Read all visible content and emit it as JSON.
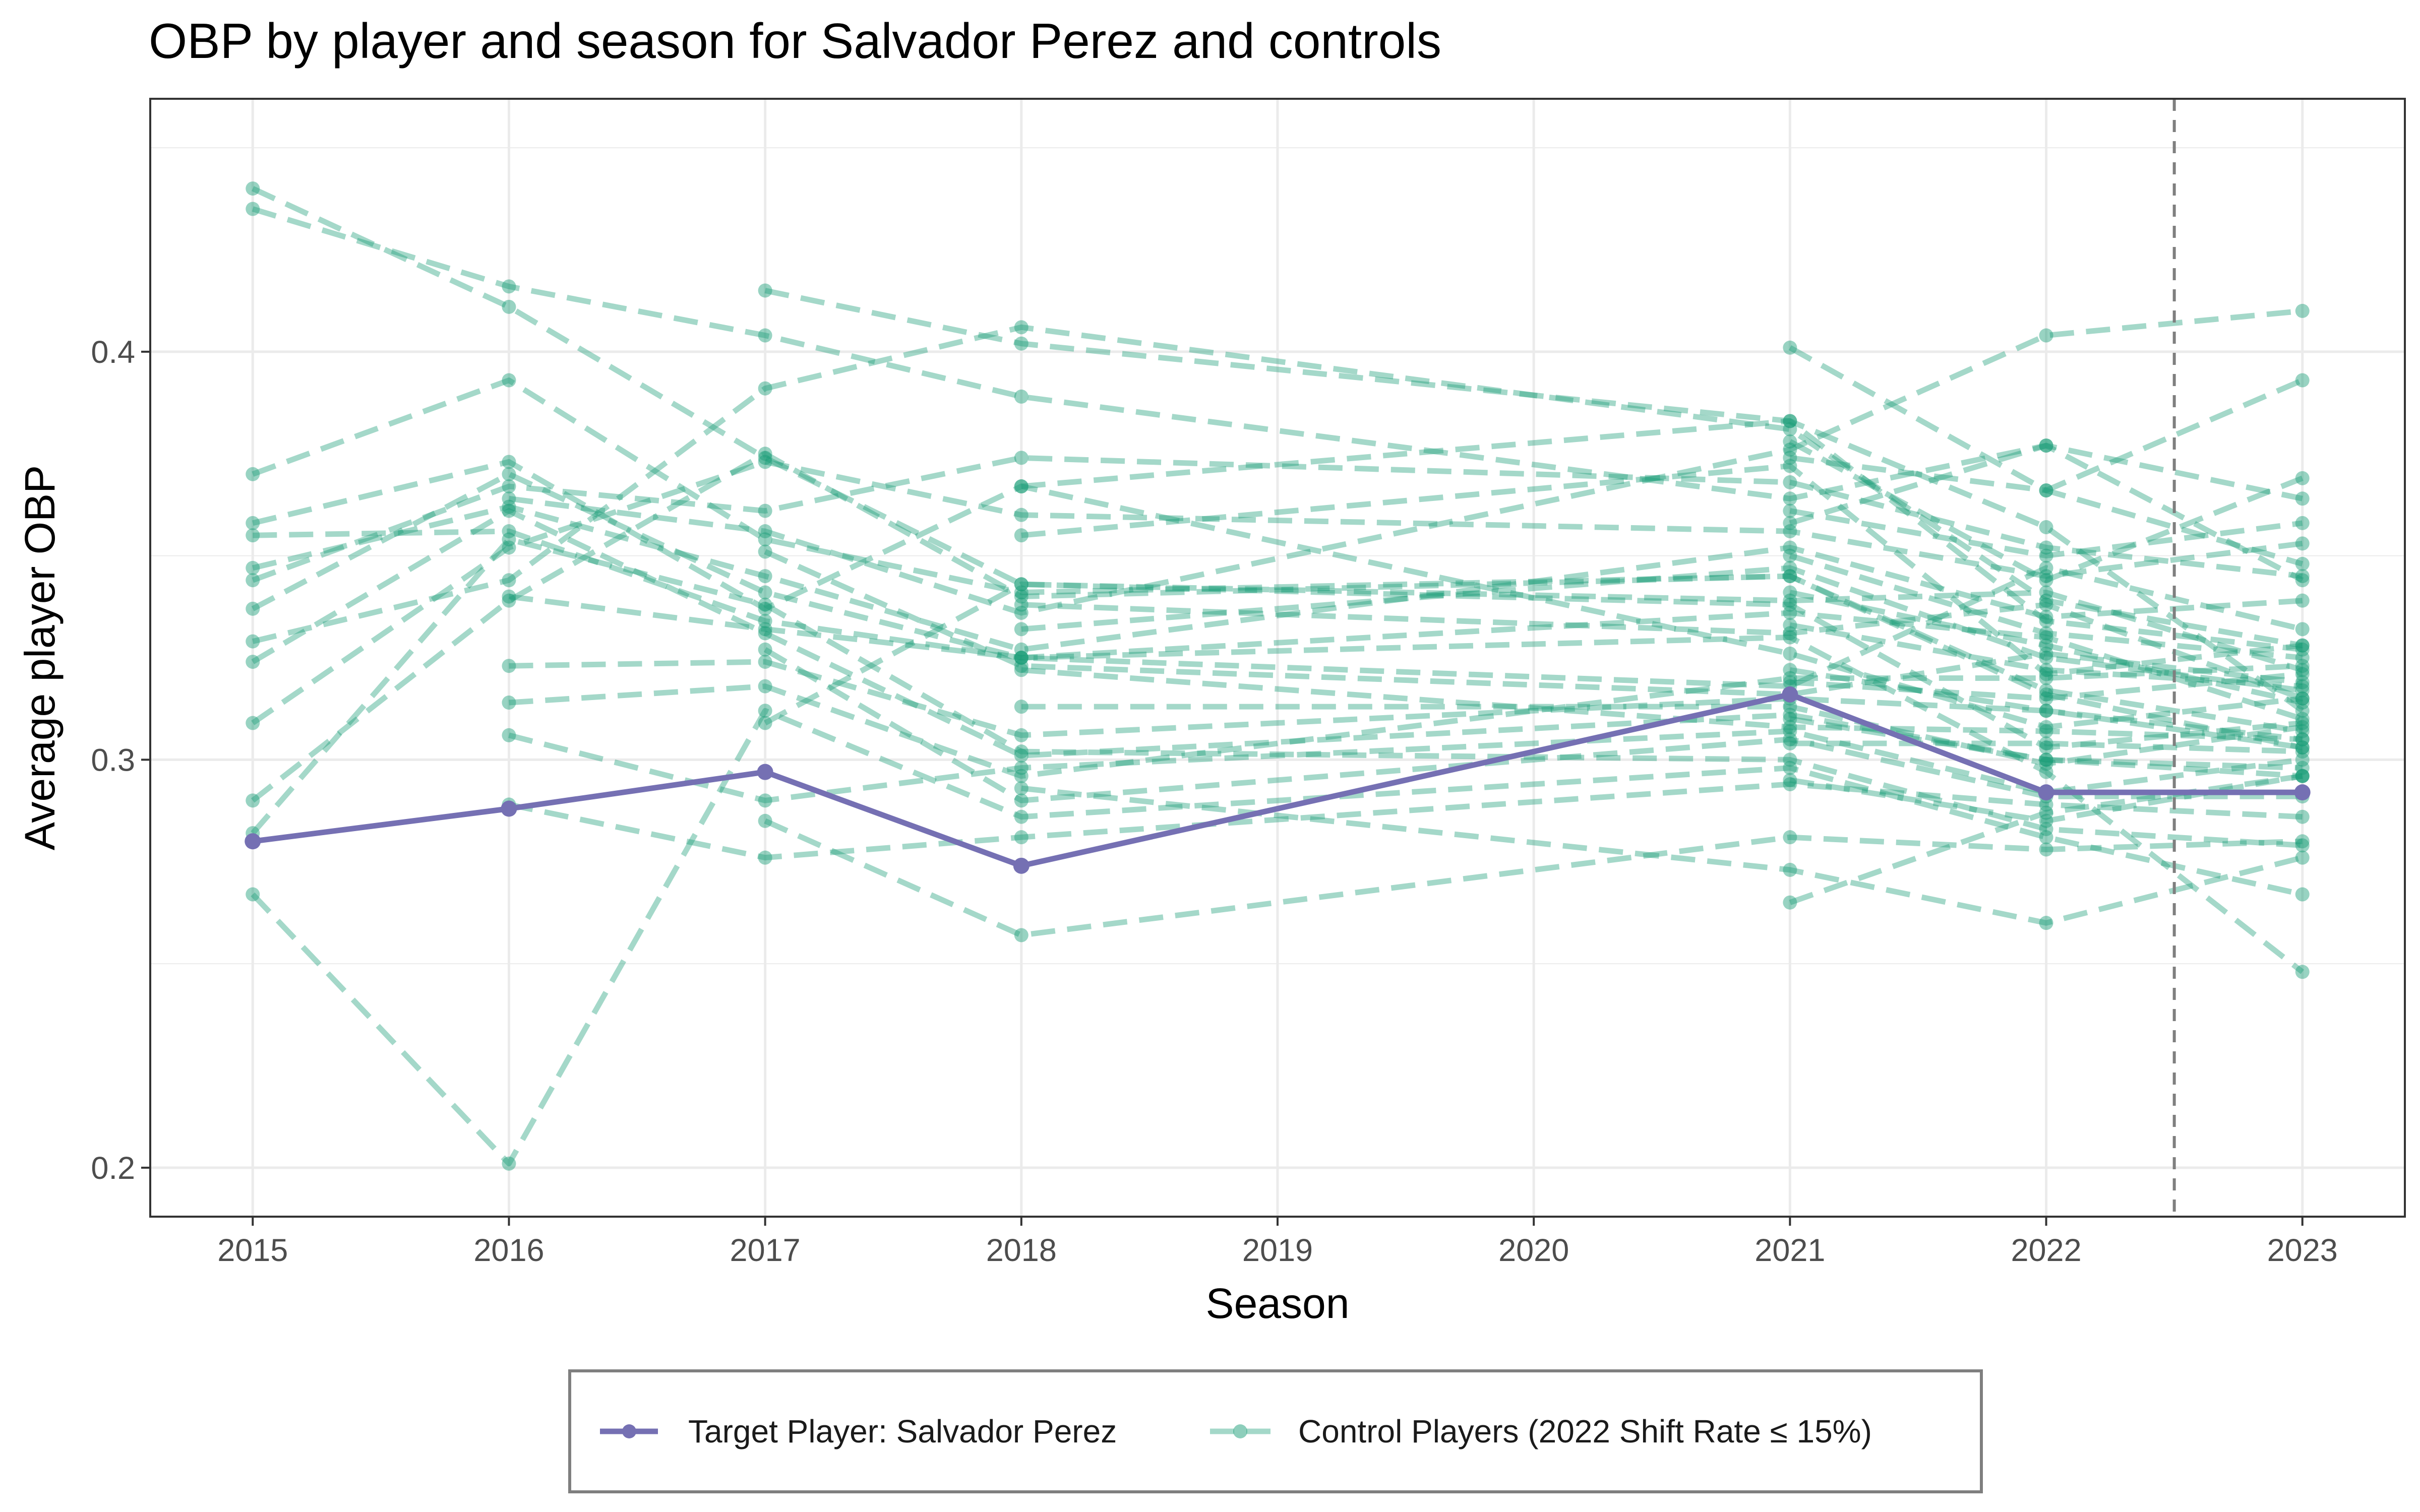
{
  "chart_data": {
    "type": "line",
    "title": "OBP by player and season for Salvador Perez and controls",
    "xlabel": "Season",
    "ylabel": "Average player OBP",
    "x_ticks": [
      "2015",
      "2016",
      "2017",
      "2018",
      "2019",
      "2020",
      "2021",
      "2022",
      "2023"
    ],
    "y_ticks": [
      "0.2",
      "0.3",
      "0.4"
    ],
    "xlim": [
      2014.6,
      2023.4
    ],
    "ylim": [
      0.188,
      0.462
    ],
    "grid": true,
    "treatment_line_x": 2022.5,
    "legend_position": "bottom",
    "colors": {
      "target": "#7570b3",
      "control": "#1b9e77",
      "treatment_line": "#7f7f7f"
    },
    "series": [
      {
        "name": "Target Player: Salvador Perez",
        "role": "target",
        "points": [
          [
            2015,
            0.28
          ],
          [
            2016,
            0.288
          ],
          [
            2017,
            0.297
          ],
          [
            2018,
            0.274
          ],
          [
            2021,
            0.316
          ],
          [
            2022,
            0.292
          ],
          [
            2023,
            0.292
          ]
        ]
      },
      {
        "name": "Control Players (2022 Shift Rate ≤ 15%)",
        "role": "control",
        "players": [
          [
            [
              2015,
              0.44
            ],
            [
              2016,
              0.411
            ],
            [
              2017,
              0.374
            ],
            [
              2018,
              0.343
            ],
            [
              2021,
              0.339
            ],
            [
              2022,
              0.341
            ],
            [
              2023,
              0.322
            ]
          ],
          [
            [
              2015,
              0.435
            ],
            [
              2016,
              0.416
            ],
            [
              2017,
              0.404
            ],
            [
              2018,
              0.389
            ],
            [
              2021,
              0.364
            ],
            [
              2022,
              0.377
            ],
            [
              2023,
              0.344
            ]
          ],
          [
            [
              2015,
              0.37
            ],
            [
              2016,
              0.393
            ],
            [
              2017,
              0.354
            ],
            [
              2018,
              0.341
            ],
            [
              2021,
              0.345
            ],
            [
              2022,
              0.317
            ],
            [
              2023,
              0.307
            ]
          ],
          [
            [
              2015,
              0.358
            ],
            [
              2016,
              0.373
            ],
            [
              2017,
              0.337
            ],
            [
              2018,
              0.367
            ],
            [
              2021,
              0.326
            ],
            [
              2022,
              0.308
            ],
            [
              2023,
              0.315
            ]
          ],
          [
            [
              2015,
              0.355
            ],
            [
              2016,
              0.356
            ],
            [
              2017,
              0.334
            ],
            [
              2018,
              0.325
            ],
            [
              2021,
              0.318
            ],
            [
              2022,
              0.347
            ],
            [
              2023,
              0.332
            ]
          ],
          [
            [
              2015,
              0.347
            ],
            [
              2016,
              0.362
            ],
            [
              2017,
              0.345
            ],
            [
              2018,
              0.327
            ],
            [
              2021,
              0.352
            ],
            [
              2022,
              0.335
            ],
            [
              2023,
              0.339
            ]
          ],
          [
            [
              2015,
              0.344
            ],
            [
              2016,
              0.367
            ],
            [
              2017,
              0.361
            ],
            [
              2018,
              0.374
            ],
            [
              2021,
              0.368
            ],
            [
              2022,
              0.352
            ],
            [
              2023,
              0.345
            ]
          ],
          [
            [
              2015,
              0.337
            ],
            [
              2016,
              0.37
            ],
            [
              2017,
              0.341
            ],
            [
              2018,
              0.325
            ],
            [
              2021,
              0.336
            ],
            [
              2022,
              0.33
            ],
            [
              2023,
              0.31
            ]
          ],
          [
            [
              2015,
              0.329
            ],
            [
              2016,
              0.344
            ],
            [
              2017,
              0.391
            ],
            [
              2018,
              0.406
            ],
            [
              2021,
              0.381
            ],
            [
              2022,
              0.339
            ],
            [
              2023,
              0.328
            ]
          ],
          [
            [
              2015,
              0.324
            ],
            [
              2016,
              0.361
            ],
            [
              2017,
              0.331
            ],
            [
              2018,
              0.301
            ],
            [
              2021,
              0.311
            ],
            [
              2022,
              0.3
            ],
            [
              2023,
              0.296
            ]
          ],
          [
            [
              2015,
              0.309
            ],
            [
              2016,
              0.352
            ],
            [
              2017,
              0.373
            ],
            [
              2018,
              0.36
            ],
            [
              2021,
              0.356
            ],
            [
              2022,
              0.345
            ],
            [
              2023,
              0.353
            ]
          ],
          [
            [
              2015,
              0.29
            ],
            [
              2016,
              0.339
            ],
            [
              2017,
              0.375
            ],
            [
              2018,
              0.34
            ],
            [
              2021,
              0.345
            ],
            [
              2022,
              0.316
            ],
            [
              2023,
              0.303
            ]
          ],
          [
            [
              2015,
              0.282
            ],
            [
              2016,
              0.354
            ],
            [
              2017,
              0.338
            ],
            [
              2018,
              0.302
            ],
            [
              2021,
              0.3
            ],
            [
              2022,
              0.283
            ],
            [
              2023,
              0.279
            ]
          ],
          [
            [
              2015,
              0.267
            ],
            [
              2016,
              0.201
            ],
            [
              2017,
              0.312
            ],
            [
              2018,
              0.286
            ],
            [
              2021,
              0.298
            ],
            [
              2022,
              0.281
            ],
            [
              2023,
              0.267
            ]
          ],
          [
            [
              2016,
              0.364
            ],
            [
              2017,
              0.356
            ],
            [
              2018,
              0.336
            ],
            [
              2021,
              0.376
            ],
            [
              2022,
              0.404
            ],
            [
              2023,
              0.41
            ]
          ],
          [
            [
              2016,
              0.34
            ],
            [
              2017,
              0.332
            ],
            [
              2018,
              0.325
            ],
            [
              2021,
              0.33
            ],
            [
              2022,
              0.297
            ],
            [
              2023,
              0.248
            ]
          ],
          [
            [
              2016,
              0.323
            ],
            [
              2017,
              0.324
            ],
            [
              2018,
              0.306
            ],
            [
              2021,
              0.315
            ],
            [
              2022,
              0.312
            ],
            [
              2023,
              0.303
            ]
          ],
          [
            [
              2016,
              0.314
            ],
            [
              2017,
              0.318
            ],
            [
              2018,
              0.296
            ],
            [
              2021,
              0.32
            ],
            [
              2022,
              0.32
            ],
            [
              2023,
              0.323
            ]
          ],
          [
            [
              2016,
              0.306
            ],
            [
              2017,
              0.29
            ],
            [
              2018,
              0.298
            ],
            [
              2021,
              0.307
            ],
            [
              2022,
              0.292
            ],
            [
              2023,
              0.3
            ]
          ],
          [
            [
              2016,
              0.289
            ],
            [
              2017,
              0.276
            ],
            [
              2018,
              0.281
            ],
            [
              2021,
              0.294
            ],
            [
              2022,
              0.289
            ],
            [
              2023,
              0.286
            ]
          ],
          [
            [
              2017,
              0.415
            ],
            [
              2018,
              0.402
            ],
            [
              2021,
              0.383
            ],
            [
              2022,
              0.334
            ],
            [
              2023,
              0.327
            ]
          ],
          [
            [
              2017,
              0.351
            ],
            [
              2018,
              0.323
            ],
            [
              2021,
              0.316
            ],
            [
              2022,
              0.326
            ],
            [
              2023,
              0.319
            ]
          ],
          [
            [
              2017,
              0.327
            ],
            [
              2018,
              0.29
            ],
            [
              2021,
              0.305
            ],
            [
              2022,
              0.291
            ],
            [
              2023,
              0.291
            ]
          ],
          [
            [
              2017,
              0.309
            ],
            [
              2018,
              0.343
            ],
            [
              2021,
              0.338
            ],
            [
              2022,
              0.303
            ],
            [
              2023,
              0.309
            ]
          ],
          [
            [
              2017,
              0.285
            ],
            [
              2018,
              0.257
            ],
            [
              2021,
              0.281
            ],
            [
              2022,
              0.278
            ],
            [
              2023,
              0.28
            ]
          ],
          [
            [
              2018,
              0.367
            ],
            [
              2021,
              0.383
            ],
            [
              2022,
              0.357
            ],
            [
              2023,
              0.312
            ]
          ],
          [
            [
              2018,
              0.355
            ],
            [
              2021,
              0.372
            ],
            [
              2022,
              0.321
            ],
            [
              2023,
              0.328
            ]
          ],
          [
            [
              2018,
              0.338
            ],
            [
              2021,
              0.331
            ],
            [
              2022,
              0.338
            ],
            [
              2023,
              0.315
            ]
          ],
          [
            [
              2018,
              0.332
            ],
            [
              2021,
              0.347
            ],
            [
              2022,
              0.325
            ],
            [
              2023,
              0.317
            ]
          ],
          [
            [
              2018,
              0.322
            ],
            [
              2021,
              0.308
            ],
            [
              2022,
              0.307
            ],
            [
              2023,
              0.305
            ]
          ],
          [
            [
              2018,
              0.313
            ],
            [
              2021,
              0.313
            ],
            [
              2022,
              0.299
            ],
            [
              2023,
              0.308
            ]
          ],
          [
            [
              2018,
              0.293
            ],
            [
              2021,
              0.273
            ],
            [
              2022,
              0.26
            ],
            [
              2023,
              0.276
            ]
          ],
          [
            [
              2021,
              0.401
            ],
            [
              2022,
              0.366
            ],
            [
              2023,
              0.393
            ]
          ],
          [
            [
              2021,
              0.378
            ],
            [
              2022,
              0.344
            ],
            [
              2023,
              0.369
            ]
          ],
          [
            [
              2021,
              0.374
            ],
            [
              2022,
              0.366
            ],
            [
              2023,
              0.348
            ]
          ],
          [
            [
              2021,
              0.361
            ],
            [
              2022,
              0.35
            ],
            [
              2023,
              0.358
            ]
          ],
          [
            [
              2021,
              0.358
            ],
            [
              2022,
              0.377
            ],
            [
              2023,
              0.364
            ]
          ],
          [
            [
              2021,
              0.35
            ],
            [
              2022,
              0.331
            ],
            [
              2023,
              0.325
            ]
          ],
          [
            [
              2021,
              0.341
            ],
            [
              2022,
              0.328
            ],
            [
              2023,
              0.314
            ]
          ],
          [
            [
              2021,
              0.333
            ],
            [
              2022,
              0.322
            ],
            [
              2023,
              0.318
            ]
          ],
          [
            [
              2021,
              0.322
            ],
            [
              2022,
              0.312
            ],
            [
              2023,
              0.305
            ]
          ],
          [
            [
              2021,
              0.319
            ],
            [
              2022,
              0.315
            ],
            [
              2023,
              0.321
            ]
          ],
          [
            [
              2021,
              0.31
            ],
            [
              2022,
              0.3
            ],
            [
              2023,
              0.298
            ]
          ],
          [
            [
              2021,
              0.304
            ],
            [
              2022,
              0.304
            ],
            [
              2023,
              0.302
            ]
          ],
          [
            [
              2021,
              0.295
            ],
            [
              2022,
              0.285
            ],
            [
              2023,
              0.296
            ]
          ],
          [
            [
              2021,
              0.265
            ],
            [
              2022,
              0.287
            ],
            [
              2023,
              0.296
            ]
          ]
        ]
      }
    ]
  }
}
